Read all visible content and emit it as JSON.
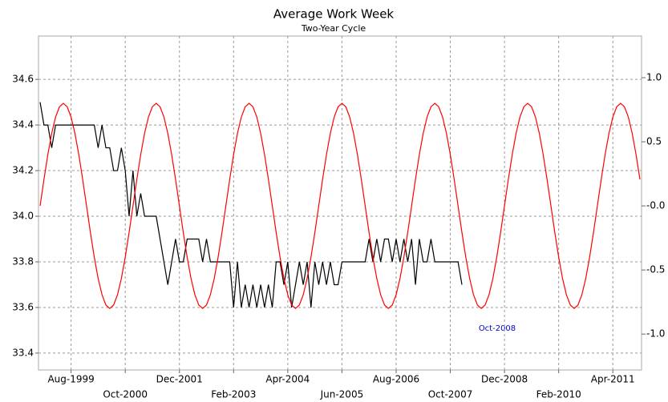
{
  "chart_data": {
    "type": "line",
    "title": "Average Work Week",
    "subtitle": "Two-Year Cycle",
    "annotation": "Oct-2008",
    "grid": true,
    "x": [
      "1998-12",
      "1999-01",
      "1999-02",
      "1999-03",
      "1999-04",
      "1999-05",
      "1999-06",
      "1999-07",
      "1999-08",
      "1999-09",
      "1999-10",
      "1999-11",
      "1999-12",
      "2000-01",
      "2000-02",
      "2000-03",
      "2000-04",
      "2000-05",
      "2000-06",
      "2000-07",
      "2000-08",
      "2000-09",
      "2000-10",
      "2000-11",
      "2000-12",
      "2001-01",
      "2001-02",
      "2001-03",
      "2001-04",
      "2001-05",
      "2001-06",
      "2001-07",
      "2001-08",
      "2001-09",
      "2001-10",
      "2001-11",
      "2001-12",
      "2002-01",
      "2002-02",
      "2002-03",
      "2002-04",
      "2002-05",
      "2002-06",
      "2002-07",
      "2002-08",
      "2002-09",
      "2002-10",
      "2002-11",
      "2002-12",
      "2003-01",
      "2003-02",
      "2003-03",
      "2003-04",
      "2003-05",
      "2003-06",
      "2003-07",
      "2003-08",
      "2003-09",
      "2003-10",
      "2003-11",
      "2003-12",
      "2004-01",
      "2004-02",
      "2004-03",
      "2004-04",
      "2004-05",
      "2004-06",
      "2004-07",
      "2004-08",
      "2004-09",
      "2004-10",
      "2004-11",
      "2004-12",
      "2005-01",
      "2005-02",
      "2005-03",
      "2005-04",
      "2005-05",
      "2005-06",
      "2005-07",
      "2005-08",
      "2005-09",
      "2005-10",
      "2005-11",
      "2005-12",
      "2006-01",
      "2006-02",
      "2006-03",
      "2006-04",
      "2006-05",
      "2006-06",
      "2006-07",
      "2006-08",
      "2006-09",
      "2006-10",
      "2006-11",
      "2006-12",
      "2007-01",
      "2007-02",
      "2007-03",
      "2007-04",
      "2007-05",
      "2007-06",
      "2007-07",
      "2007-08",
      "2007-09",
      "2007-10",
      "2007-11",
      "2007-12",
      "2008-01",
      "2008-02",
      "2008-03",
      "2008-04",
      "2008-05",
      "2008-06",
      "2008-07",
      "2008-08",
      "2008-09",
      "2008-10",
      "2008-11",
      "2008-12",
      "2009-01",
      "2009-02",
      "2009-03",
      "2009-04",
      "2009-05",
      "2009-06",
      "2009-07",
      "2009-08",
      "2009-09",
      "2009-10",
      "2009-11",
      "2009-12",
      "2010-01",
      "2010-02",
      "2010-03",
      "2010-04",
      "2010-05",
      "2010-06",
      "2010-07",
      "2010-08",
      "2010-09",
      "2010-10",
      "2010-11",
      "2010-12",
      "2011-01",
      "2011-02",
      "2011-03",
      "2011-04",
      "2011-05",
      "2011-06",
      "2011-07",
      "2011-08",
      "2011-09",
      "2011-10",
      "2011-11"
    ],
    "xlim": [
      "1998-12",
      "2011-11"
    ],
    "xticks": [
      {
        "value": "1999-08",
        "label": "Aug-1999"
      },
      {
        "value": "2000-10",
        "label": "Oct-2000"
      },
      {
        "value": "2001-12",
        "label": "Dec-2001"
      },
      {
        "value": "2003-02",
        "label": "Feb-2003"
      },
      {
        "value": "2004-04",
        "label": "Apr-2004"
      },
      {
        "value": "2005-06",
        "label": "Jun-2005"
      },
      {
        "value": "2006-08",
        "label": "Aug-2006"
      },
      {
        "value": "2007-10",
        "label": "Oct-2007"
      },
      {
        "value": "2008-12",
        "label": "Dec-2008"
      },
      {
        "value": "2010-02",
        "label": "Feb-2010"
      },
      {
        "value": "2011-04",
        "label": "Apr-2011"
      }
    ],
    "ylim": [
      33.326,
      34.79
    ],
    "yticks": [
      33.4,
      33.6,
      33.8,
      {
        "value": 34,
        "label": "34.0"
      },
      34.2,
      34.4,
      34.6
    ],
    "y2lim": [
      -1.28,
      1.325
    ],
    "y2ticks": [
      {
        "value": -1,
        "label": "-1.0"
      },
      -0.5,
      {
        "value": 0,
        "label": "-0.0"
      },
      0.5,
      {
        "value": 1,
        "label": "1.0"
      }
    ],
    "series": [
      {
        "color": "#000000",
        "values": [
          34.5,
          34.4,
          34.4,
          34.3,
          34.4,
          34.4,
          34.4,
          34.4,
          34.4,
          34.4,
          34.4,
          34.4,
          34.4,
          34.4,
          34.4,
          34.3,
          34.4,
          34.3,
          34.3,
          34.2,
          34.2,
          34.3,
          34.2,
          34.0,
          34.2,
          34.0,
          34.1,
          34.0,
          34.0,
          34.0,
          34.0,
          33.9,
          33.8,
          33.7,
          33.8,
          33.9,
          33.8,
          33.8,
          33.9,
          33.9,
          33.9,
          33.9,
          33.8,
          33.9,
          33.8,
          33.8,
          33.8,
          33.8,
          33.8,
          33.8,
          33.6,
          33.8,
          33.6,
          33.7,
          33.6,
          33.7,
          33.6,
          33.7,
          33.6,
          33.7,
          33.6,
          33.8,
          33.8,
          33.7,
          33.8,
          33.6,
          33.7,
          33.8,
          33.7,
          33.8,
          33.6,
          33.8,
          33.7,
          33.8,
          33.7,
          33.8,
          33.7,
          33.7,
          33.8,
          33.8,
          33.8,
          33.8,
          33.8,
          33.8,
          33.8,
          33.9,
          33.8,
          33.9,
          33.8,
          33.9,
          33.9,
          33.8,
          33.9,
          33.8,
          33.9,
          33.8,
          33.9,
          33.7,
          33.9,
          33.8,
          33.8,
          33.9,
          33.8,
          33.8,
          33.8,
          33.8,
          33.8,
          33.8,
          33.8,
          33.7,
          null,
          null,
          null,
          null,
          null,
          null,
          null,
          null,
          null,
          null,
          null,
          null,
          null,
          null,
          null,
          null,
          null,
          null,
          null,
          null,
          null,
          null,
          null,
          null,
          null,
          null,
          null,
          null,
          null,
          null,
          null,
          null,
          null,
          null,
          null,
          null,
          null,
          null,
          null,
          null,
          null,
          null,
          null,
          null,
          null,
          null
        ]
      },
      {
        "color": "#ff0000",
        "axis": "y2",
        "values": [
          0,
          0.207,
          0.4,
          0.566,
          0.693,
          0.773,
          0.8,
          0.773,
          0.693,
          0.566,
          0.4,
          0.207,
          0,
          -0.207,
          -0.4,
          -0.566,
          -0.693,
          -0.773,
          -0.8,
          -0.773,
          -0.693,
          -0.566,
          -0.4,
          -0.207,
          0,
          0.207,
          0.4,
          0.566,
          0.693,
          0.773,
          0.8,
          0.773,
          0.693,
          0.566,
          0.4,
          0.207,
          0,
          -0.207,
          -0.4,
          -0.566,
          -0.693,
          -0.773,
          -0.8,
          -0.773,
          -0.693,
          -0.566,
          -0.4,
          -0.207,
          0,
          0.207,
          0.4,
          0.566,
          0.693,
          0.773,
          0.8,
          0.773,
          0.693,
          0.566,
          0.4,
          0.207,
          0,
          -0.207,
          -0.4,
          -0.566,
          -0.693,
          -0.773,
          -0.8,
          -0.773,
          -0.693,
          -0.566,
          -0.4,
          -0.207,
          0,
          0.207,
          0.4,
          0.566,
          0.693,
          0.773,
          0.8,
          0.773,
          0.693,
          0.566,
          0.4,
          0.207,
          0,
          -0.207,
          -0.4,
          -0.566,
          -0.693,
          -0.773,
          -0.8,
          -0.773,
          -0.693,
          -0.566,
          -0.4,
          -0.207,
          0,
          0.207,
          0.4,
          0.566,
          0.693,
          0.773,
          0.8,
          0.773,
          0.693,
          0.566,
          0.4,
          0.207,
          0,
          -0.207,
          -0.4,
          -0.566,
          -0.693,
          -0.773,
          -0.8,
          -0.773,
          -0.693,
          -0.566,
          -0.4,
          -0.207,
          0,
          0.207,
          0.4,
          0.566,
          0.693,
          0.773,
          0.8,
          0.773,
          0.693,
          0.566,
          0.4,
          0.207,
          0,
          -0.207,
          -0.4,
          -0.566,
          -0.693,
          -0.773,
          -0.8,
          -0.773,
          -0.693,
          -0.566,
          -0.4,
          -0.207,
          0,
          0.207,
          0.4,
          0.566,
          0.693,
          0.773,
          0.8,
          0.773,
          0.693,
          0.566,
          0.4,
          0.207
        ]
      }
    ]
  }
}
